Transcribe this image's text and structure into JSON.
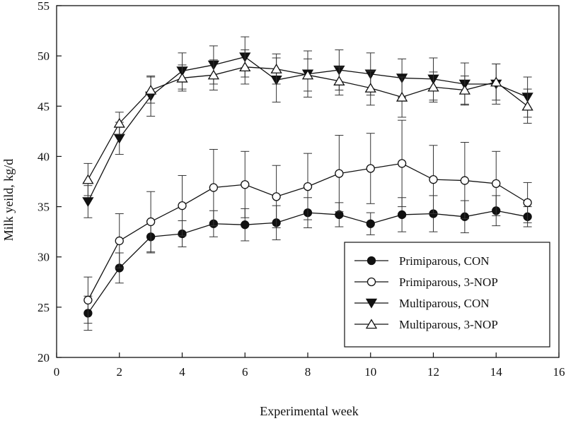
{
  "chart_data": {
    "type": "line",
    "title": "",
    "xlabel": "Experimental week",
    "ylabel": "Milk yeild, kg/d",
    "xlim": [
      0,
      16
    ],
    "ylim": [
      20,
      55
    ],
    "xticks": [
      0,
      2,
      4,
      6,
      8,
      10,
      12,
      14,
      16
    ],
    "yticks": [
      20,
      25,
      30,
      35,
      40,
      45,
      50,
      55
    ],
    "grid": false,
    "legend_position": "bottom-right",
    "x": [
      1,
      2,
      3,
      4,
      5,
      6,
      7,
      8,
      9,
      10,
      11,
      12,
      13,
      14,
      15
    ],
    "series": [
      {
        "name": "Primiparous, CON",
        "marker": "circle-filled",
        "values": [
          24.4,
          28.9,
          32.0,
          32.3,
          33.3,
          33.2,
          33.4,
          34.4,
          34.2,
          33.3,
          34.2,
          34.3,
          34.0,
          34.6,
          34.0
        ],
        "errors": [
          1.7,
          1.5,
          1.6,
          1.3,
          1.3,
          1.6,
          1.7,
          1.5,
          1.2,
          1.1,
          1.7,
          1.8,
          1.6,
          1.5,
          1.0
        ]
      },
      {
        "name": "Primiparous, 3-NOP",
        "marker": "circle-open",
        "values": [
          25.7,
          31.6,
          33.5,
          35.1,
          36.9,
          37.2,
          36.0,
          37.0,
          38.3,
          38.8,
          39.3,
          37.7,
          37.6,
          37.3,
          35.4
        ],
        "errors": [
          2.3,
          2.7,
          3.0,
          3.0,
          3.8,
          3.3,
          3.1,
          3.3,
          3.8,
          3.5,
          4.3,
          3.4,
          3.8,
          3.2,
          2.0
        ]
      },
      {
        "name": "Multiparous, CON",
        "marker": "triangle-down-filled",
        "values": [
          35.5,
          41.8,
          46.0,
          48.5,
          49.1,
          49.9,
          47.6,
          48.2,
          48.6,
          48.2,
          47.8,
          47.7,
          47.2,
          47.2,
          45.9
        ],
        "errors": [
          1.6,
          1.6,
          2.0,
          1.8,
          1.9,
          2.0,
          2.2,
          2.3,
          2.0,
          2.1,
          1.9,
          2.1,
          2.1,
          2.0,
          2.0
        ]
      },
      {
        "name": "Multiparous, 3-NOP",
        "marker": "triangle-up-open",
        "values": [
          37.7,
          43.3,
          46.6,
          47.8,
          48.1,
          48.9,
          48.7,
          48.1,
          47.5,
          46.8,
          45.9,
          46.9,
          46.6,
          47.4,
          45.0
        ],
        "errors": [
          1.6,
          1.1,
          1.3,
          1.3,
          1.5,
          1.7,
          1.5,
          1.6,
          1.4,
          1.7,
          2.0,
          1.5,
          1.4,
          1.8,
          1.7
        ]
      }
    ]
  }
}
